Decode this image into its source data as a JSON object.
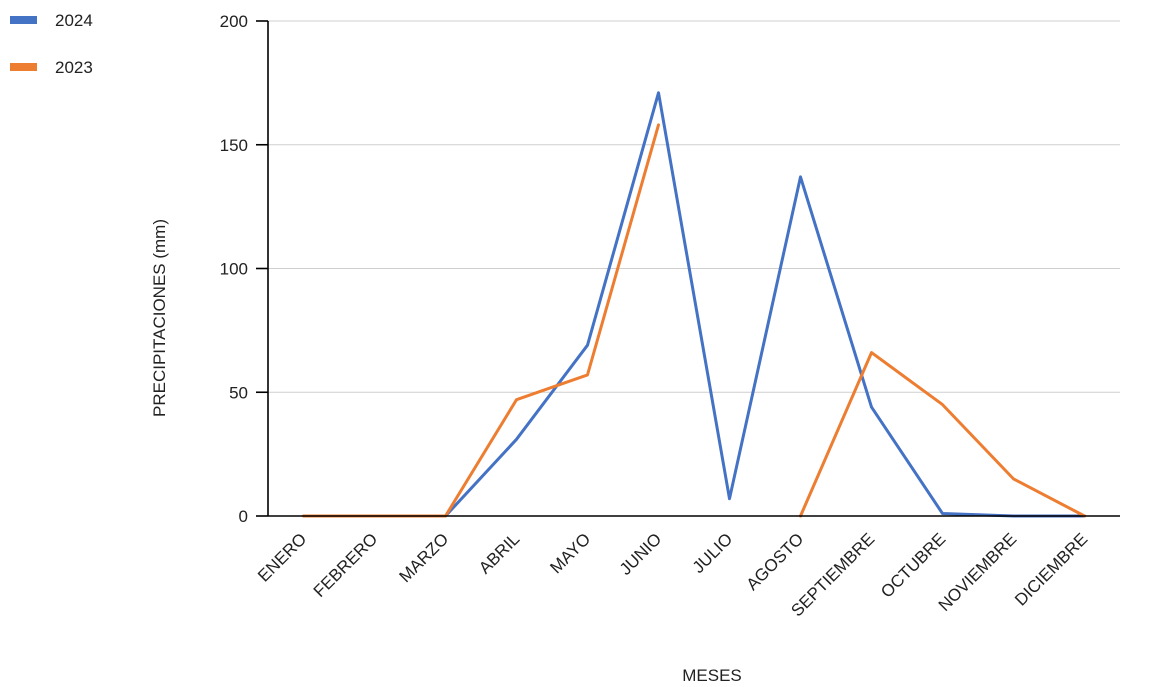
{
  "chart_data": {
    "type": "line",
    "xlabel": "MESES",
    "ylabel": "PRECIPITACIONES (mm)",
    "ylim": [
      0,
      200
    ],
    "yticks": [
      0,
      50,
      100,
      150,
      200
    ],
    "grid": true,
    "legend": "top-left",
    "categories": [
      "ENERO",
      "FEBRERO",
      "MARZO",
      "ABRIL",
      "MAYO",
      "JUNIO",
      "JULIO",
      "AGOSTO",
      "SEPTIEMBRE",
      "OCTUBRE",
      "NOVIEMBRE",
      "DICIEMBRE"
    ],
    "series": [
      {
        "name": "2024",
        "color": "#4472C4",
        "values": [
          null,
          null,
          0,
          31,
          69,
          171,
          7,
          137,
          44,
          1,
          0,
          0
        ]
      },
      {
        "name": "2023",
        "color": "#ED7D31",
        "segments": [
          {
            "start": 0,
            "values": [
              0,
              0,
              0,
              47,
              57,
              158
            ]
          },
          {
            "start": 7,
            "values": [
              0,
              66,
              45,
              15,
              0
            ]
          }
        ]
      }
    ]
  }
}
